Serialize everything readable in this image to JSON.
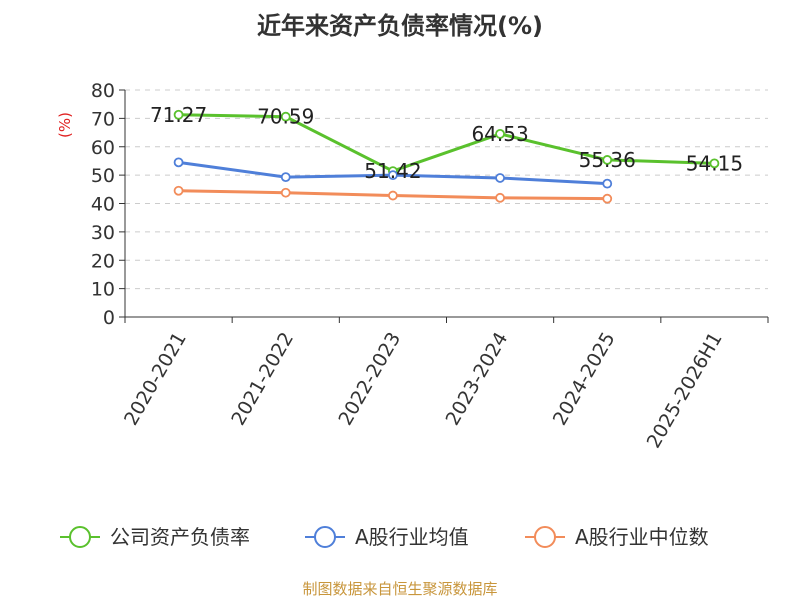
{
  "chart_data": {
    "type": "line",
    "title": "近年来资产负债率情况(%)",
    "ylabel": "(%)",
    "xlabel": "",
    "categories": [
      "2020-2021",
      "2021-2022",
      "2022-2023",
      "2023-2024",
      "2024-2025",
      "2025-2026H1"
    ],
    "ylim": [
      0,
      80
    ],
    "yticks": [
      0,
      10,
      20,
      30,
      40,
      50,
      60,
      70,
      80
    ],
    "grid": true,
    "legend_position": "bottom",
    "series": [
      {
        "name": "公司资产负债率",
        "color": "#5ac12d",
        "values": [
          71.27,
          70.59,
          51.42,
          64.53,
          55.36,
          54.15
        ],
        "labels": [
          "71.27",
          "70.59",
          "51.42",
          "64.53",
          "55.36",
          "54.15"
        ]
      },
      {
        "name": "A股行业均值",
        "color": "#4f7fd9",
        "values": [
          54.5,
          49.3,
          50.0,
          49.0,
          47.0,
          null
        ]
      },
      {
        "name": "A股行业中位数",
        "color": "#f28c5a",
        "values": [
          44.5,
          43.8,
          42.8,
          42.0,
          41.7,
          null
        ]
      }
    ]
  },
  "footer": {
    "source": "制图数据来自恒生聚源数据库"
  }
}
